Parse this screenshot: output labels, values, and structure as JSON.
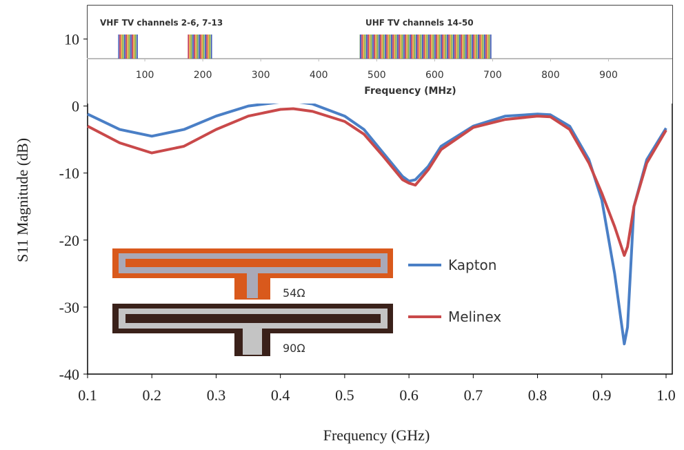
{
  "chart_data": [
    {
      "type": "line",
      "x_label": "Frequency (GHz)",
      "y_label": "S11 Magnitude (dB)",
      "x": [
        0.1,
        0.15,
        0.2,
        0.25,
        0.3,
        0.35,
        0.4,
        0.42,
        0.45,
        0.5,
        0.53,
        0.56,
        0.59,
        0.6,
        0.61,
        0.63,
        0.65,
        0.7,
        0.75,
        0.8,
        0.82,
        0.85,
        0.88,
        0.9,
        0.92,
        0.935,
        0.94,
        0.95,
        0.97,
        1.0
      ],
      "series": [
        {
          "name": "Kapton",
          "color": "#4a7fc6",
          "values": [
            -1.2,
            -3.5,
            -4.5,
            -3.5,
            -1.5,
            0,
            0.6,
            0.7,
            0.3,
            -1.5,
            -3.5,
            -7,
            -10.5,
            -11.2,
            -11,
            -9,
            -6,
            -3,
            -1.5,
            -1.2,
            -1.3,
            -3,
            -8,
            -14,
            -25,
            -35.5,
            -33,
            -15,
            -8,
            -3.3
          ]
        },
        {
          "name": "Melinex",
          "color": "#c9494a",
          "values": [
            -3,
            -5.5,
            -7,
            -6,
            -3.5,
            -1.5,
            -0.5,
            -0.4,
            -0.8,
            -2.3,
            -4.2,
            -7.5,
            -11,
            -11.5,
            -11.8,
            -9.5,
            -6.5,
            -3.2,
            -2,
            -1.5,
            -1.6,
            -3.5,
            -8.5,
            -13,
            -18,
            -22.3,
            -21,
            -15,
            -8.5,
            -3.6
          ]
        }
      ],
      "xlim": [
        0.1,
        1.0
      ],
      "xticks": [
        0.1,
        0.2,
        0.3,
        0.4,
        0.5,
        0.6,
        0.7,
        0.8,
        0.9,
        {
          "value": 1.0,
          "label": "1.0"
        }
      ],
      "ylim": [
        -40,
        15
      ],
      "yticks": [
        -40,
        -30,
        -20,
        -10,
        0,
        10
      ],
      "annotations": [
        "54Ω",
        "90Ω"
      ]
    },
    {
      "type": "bands",
      "x_label": "Frequency (MHz)",
      "annotations": [
        "VHF TV channels 2-6, 7-13",
        "UHF TV channels 14-50"
      ],
      "bands": [
        {
          "start": 54,
          "end": 88
        },
        {
          "start": 174,
          "end": 216
        },
        {
          "start": 470,
          "end": 698
        }
      ],
      "xlim": [
        0,
        1010
      ],
      "xticks": [
        100,
        200,
        300,
        400,
        500,
        600,
        700,
        800,
        900
      ]
    }
  ]
}
